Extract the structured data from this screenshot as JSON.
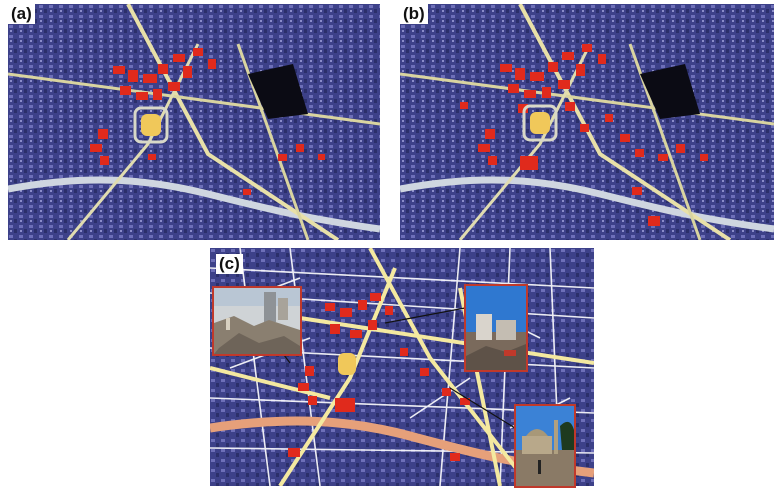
{
  "figure": {
    "panels": [
      {
        "id": "a",
        "label": "(a)"
      },
      {
        "id": "b",
        "label": "(b)"
      },
      {
        "id": "c",
        "label": "(c)"
      }
    ],
    "colors": {
      "urban_base": "#3a3f86",
      "damage_red": "#e02a1c",
      "road_yellow": "#f4e9a0",
      "main_road": "#e6a07a",
      "street_white": "#ffffff",
      "inset_border": "#c0392b"
    },
    "insets": [
      {
        "id": "inset-rubble-photo",
        "depicts": "collapsed-building-rubble"
      },
      {
        "id": "inset-damaged-block-photo",
        "depicts": "damaged-buildings-blue-sky"
      },
      {
        "id": "inset-mosque-square-photo",
        "depicts": "mosque-and-square"
      }
    ]
  }
}
